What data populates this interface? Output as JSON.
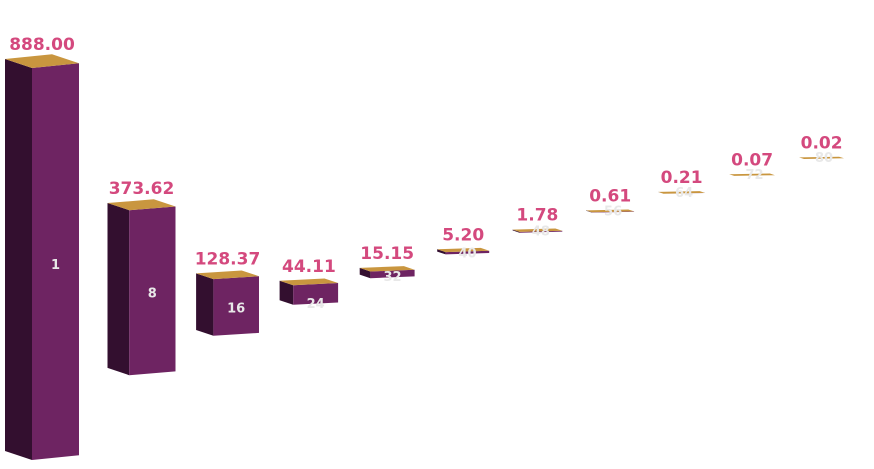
{
  "chart_data": {
    "type": "bar",
    "style": "3d-perspective",
    "categories": [
      "1",
      "8",
      "16",
      "24",
      "32",
      "40",
      "48",
      "56",
      "64",
      "72",
      "80"
    ],
    "values": [
      888.0,
      373.62,
      128.37,
      44.11,
      15.15,
      5.2,
      1.78,
      0.61,
      0.21,
      0.07,
      0.02
    ],
    "value_labels": [
      "888.00",
      "373.62",
      "128.37",
      "44.11",
      "15.15",
      "5.20",
      "1.78",
      "0.61",
      "0.21",
      "0.07",
      "0.02"
    ],
    "grid": false,
    "legend": "none",
    "colors": {
      "front": "#6e2462",
      "side": "#330f2f",
      "top": "#c9963f",
      "value_label": "#d4497e",
      "category_label": "#e8e8e8"
    }
  }
}
